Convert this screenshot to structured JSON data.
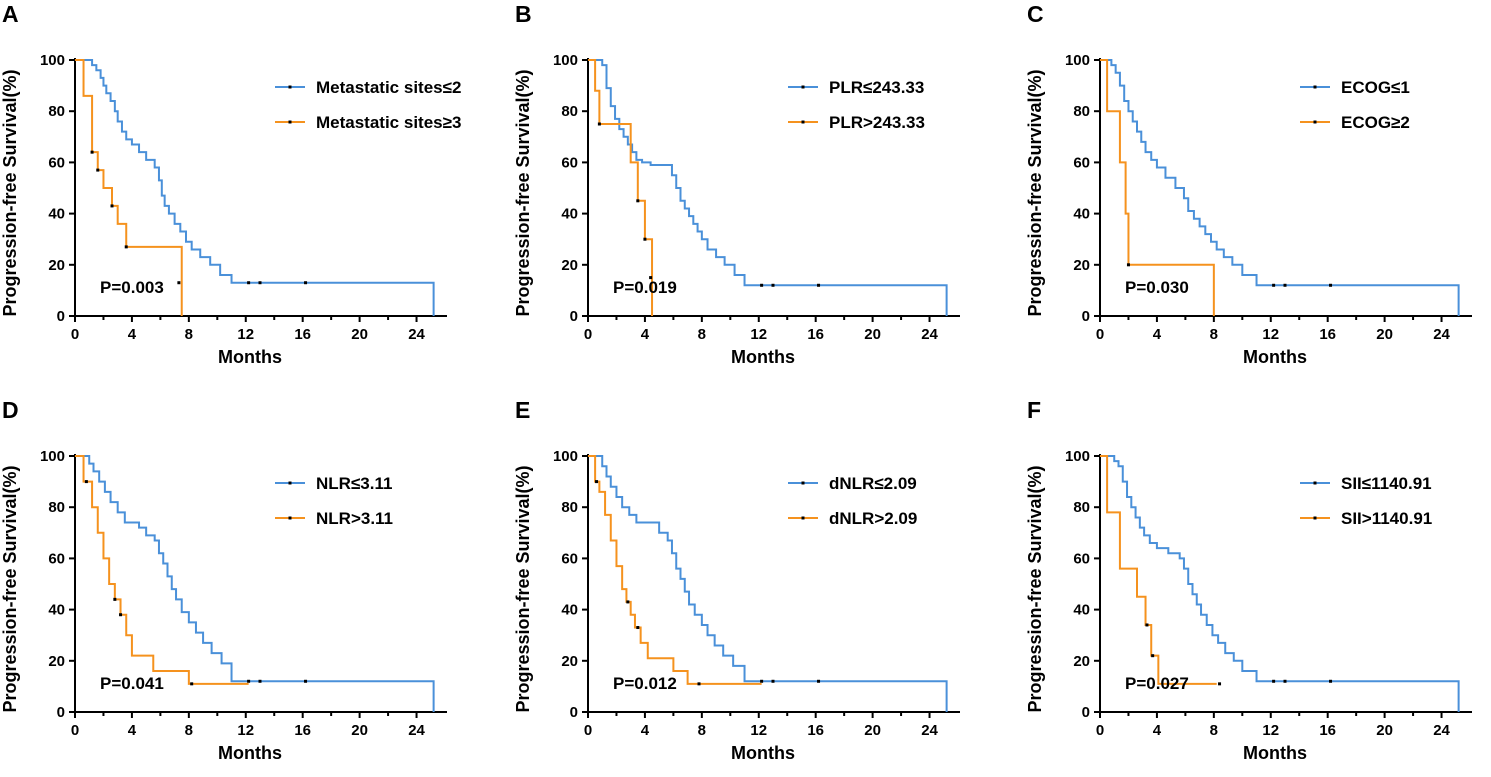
{
  "colors": {
    "blue": "#4a90d9",
    "orange": "#f5921e",
    "axis": "#000000"
  },
  "chart_data": [
    {
      "type": "line",
      "panel": "A",
      "xlabel": "Months",
      "ylabel": "Progression-free Survival(%)",
      "xlim": [
        0,
        26
      ],
      "ylim": [
        0,
        100
      ],
      "xticks": [
        "0",
        "4",
        "8",
        "12",
        "16",
        "20",
        "24"
      ],
      "yticks": [
        "0",
        "20",
        "40",
        "60",
        "80",
        "100"
      ],
      "p_value": "P=0.003",
      "series": [
        {
          "name": "Metastatic sites≤2",
          "color": "blue",
          "x": [
            0,
            1.2,
            1.5,
            1.8,
            2.0,
            2.2,
            2.5,
            2.8,
            3.0,
            3.3,
            3.6,
            4.0,
            4.5,
            5.0,
            5.6,
            5.9,
            6.1,
            6.3,
            6.6,
            7.0,
            7.4,
            7.8,
            8.2,
            8.8,
            9.5,
            10.2,
            11.0,
            25.2
          ],
          "y": [
            100,
            98,
            96,
            93,
            90,
            87,
            84,
            80,
            76,
            72,
            69,
            67,
            64,
            61,
            58,
            53,
            47,
            43,
            40,
            36,
            33,
            29,
            26,
            23,
            20,
            16,
            13,
            0
          ],
          "censor": [
            [
              12.2,
              13
            ],
            [
              13,
              13
            ],
            [
              16.2,
              13
            ]
          ]
        },
        {
          "name": "Metastatic sites≥3",
          "color": "orange",
          "x": [
            0,
            0.6,
            1.2,
            1.6,
            2.0,
            2.6,
            3.0,
            3.6,
            7.5
          ],
          "y": [
            100,
            86,
            64,
            57,
            50,
            43,
            36,
            27,
            0
          ],
          "censor": [
            [
              1.2,
              64
            ],
            [
              1.6,
              57
            ],
            [
              2.6,
              43
            ],
            [
              3.6,
              27
            ],
            [
              7.3,
              13
            ]
          ]
        }
      ]
    },
    {
      "type": "line",
      "panel": "B",
      "xlabel": "Months",
      "ylabel": "Progression-free Survival(%)",
      "xlim": [
        0,
        26
      ],
      "ylim": [
        0,
        100
      ],
      "xticks": [
        "0",
        "4",
        "8",
        "12",
        "16",
        "20",
        "24"
      ],
      "yticks": [
        "0",
        "20",
        "40",
        "60",
        "80",
        "100"
      ],
      "p_value": "P=0.019",
      "series": [
        {
          "name": "PLR≤243.33",
          "color": "blue",
          "x": [
            0,
            1.0,
            1.3,
            1.6,
            1.9,
            2.2,
            2.5,
            2.8,
            3.1,
            3.4,
            3.8,
            4.4,
            5.9,
            6.2,
            6.5,
            6.8,
            7.1,
            7.4,
            7.7,
            8.0,
            8.4,
            9.0,
            9.6,
            10.3,
            11.0,
            25.2
          ],
          "y": [
            100,
            98,
            89,
            82,
            77,
            73,
            70,
            67,
            64,
            61,
            60,
            59,
            55,
            50,
            45,
            42,
            39,
            36,
            33,
            30,
            26,
            23,
            20,
            16,
            12,
            0
          ],
          "censor": [
            [
              12.2,
              12
            ],
            [
              13,
              12
            ],
            [
              16.2,
              12
            ]
          ]
        },
        {
          "name": "PLR>243.33",
          "color": "orange",
          "x": [
            0,
            0.5,
            0.8,
            3.0,
            3.5,
            4.0,
            4.5
          ],
          "y": [
            100,
            88,
            75,
            60,
            45,
            30,
            0
          ],
          "censor": [
            [
              0.8,
              75
            ],
            [
              3.5,
              45
            ],
            [
              4.0,
              30
            ],
            [
              4.4,
              15
            ]
          ]
        }
      ]
    },
    {
      "type": "line",
      "panel": "C",
      "xlabel": "Months",
      "ylabel": "Progression-free Survival(%)",
      "xlim": [
        0,
        26
      ],
      "ylim": [
        0,
        100
      ],
      "xticks": [
        "0",
        "4",
        "8",
        "12",
        "16",
        "20",
        "24"
      ],
      "yticks": [
        "0",
        "20",
        "40",
        "60",
        "80",
        "100"
      ],
      "p_value": "P=0.030",
      "series": [
        {
          "name": "ECOG≤1",
          "color": "blue",
          "x": [
            0,
            0.8,
            1.1,
            1.4,
            1.7,
            2.0,
            2.3,
            2.6,
            2.9,
            3.2,
            3.6,
            4.0,
            4.6,
            5.3,
            5.9,
            6.2,
            6.6,
            7.0,
            7.4,
            7.8,
            8.2,
            8.7,
            9.3,
            10.0,
            11.0,
            25.2
          ],
          "y": [
            100,
            98,
            95,
            90,
            84,
            80,
            76,
            72,
            68,
            64,
            61,
            58,
            54,
            50,
            46,
            41,
            38,
            35,
            32,
            29,
            26,
            23,
            20,
            16,
            12,
            0
          ],
          "censor": [
            [
              12.2,
              12
            ],
            [
              13,
              12
            ],
            [
              16.2,
              12
            ]
          ]
        },
        {
          "name": "ECOG≥2",
          "color": "orange",
          "x": [
            0,
            0.5,
            1.4,
            1.8,
            2.0,
            8.0
          ],
          "y": [
            100,
            80,
            60,
            40,
            20,
            0
          ],
          "censor": [
            [
              2.0,
              20
            ]
          ]
        }
      ]
    },
    {
      "type": "line",
      "panel": "D",
      "xlabel": "Months",
      "ylabel": "Progression-free Survival(%)",
      "xlim": [
        0,
        26
      ],
      "ylim": [
        0,
        100
      ],
      "xticks": [
        "0",
        "4",
        "8",
        "12",
        "16",
        "20",
        "24"
      ],
      "yticks": [
        "0",
        "20",
        "40",
        "60",
        "80",
        "100"
      ],
      "p_value": "P=0.041",
      "series": [
        {
          "name": "NLR≤3.11",
          "color": "blue",
          "x": [
            0,
            1.0,
            1.3,
            1.7,
            2.1,
            2.5,
            3.0,
            3.5,
            4.5,
            5.0,
            5.6,
            5.9,
            6.2,
            6.5,
            6.8,
            7.1,
            7.5,
            8.0,
            8.5,
            9.0,
            9.6,
            10.3,
            11.0,
            25.2
          ],
          "y": [
            100,
            97,
            94,
            90,
            86,
            82,
            78,
            74,
            72,
            69,
            67,
            62,
            58,
            53,
            48,
            44,
            39,
            35,
            31,
            27,
            23,
            19,
            12,
            0
          ],
          "censor": [
            [
              12.2,
              12
            ],
            [
              13,
              12
            ],
            [
              16.2,
              12
            ]
          ]
        },
        {
          "name": "NLR>3.11",
          "color": "orange",
          "x": [
            0,
            0.6,
            1.2,
            1.6,
            2.0,
            2.4,
            2.8,
            3.2,
            3.6,
            4.0,
            5.5,
            8.0,
            12.2
          ],
          "y": [
            100,
            90,
            80,
            70,
            60,
            50,
            44,
            38,
            30,
            22,
            16,
            11,
            11
          ],
          "censor": [
            [
              0.8,
              90
            ],
            [
              2.8,
              44
            ],
            [
              3.2,
              38
            ],
            [
              8.2,
              11
            ]
          ]
        }
      ]
    },
    {
      "type": "line",
      "panel": "E",
      "xlabel": "Months",
      "ylabel": "Progression-free Survival(%)",
      "xlim": [
        0,
        26
      ],
      "ylim": [
        0,
        100
      ],
      "xticks": [
        "0",
        "4",
        "8",
        "12",
        "16",
        "20",
        "24"
      ],
      "yticks": [
        "0",
        "20",
        "40",
        "60",
        "80",
        "100"
      ],
      "p_value": "P=0.012",
      "series": [
        {
          "name": "dNLR≤2.09",
          "color": "blue",
          "x": [
            0,
            1.0,
            1.3,
            1.6,
            2.0,
            2.4,
            2.9,
            3.4,
            4.0,
            5.0,
            5.6,
            5.9,
            6.2,
            6.5,
            6.8,
            7.1,
            7.5,
            8.0,
            8.4,
            8.9,
            9.5,
            10.2,
            11.0,
            25.2
          ],
          "y": [
            100,
            96,
            92,
            88,
            84,
            80,
            77,
            74,
            74,
            70,
            67,
            62,
            56,
            52,
            47,
            42,
            38,
            34,
            30,
            26,
            22,
            18,
            12,
            0
          ],
          "censor": [
            [
              12.2,
              12
            ],
            [
              13,
              12
            ],
            [
              16.2,
              12
            ]
          ]
        },
        {
          "name": "dNLR>2.09",
          "color": "orange",
          "x": [
            0,
            0.5,
            0.8,
            1.2,
            1.6,
            2.0,
            2.4,
            2.7,
            3.0,
            3.3,
            3.7,
            4.2,
            6.0,
            7.0,
            12.2
          ],
          "y": [
            100,
            90,
            86,
            77,
            67,
            57,
            48,
            43,
            38,
            33,
            27,
            21,
            16,
            11,
            11
          ],
          "censor": [
            [
              0.6,
              90
            ],
            [
              2.8,
              43
            ],
            [
              3.5,
              33
            ],
            [
              7.8,
              11
            ]
          ]
        }
      ]
    },
    {
      "type": "line",
      "panel": "F",
      "xlabel": "Months",
      "ylabel": "Progression-free Survival(%)",
      "xlim": [
        0,
        26
      ],
      "ylim": [
        0,
        100
      ],
      "xticks": [
        "0",
        "4",
        "8",
        "12",
        "16",
        "20",
        "24"
      ],
      "yticks": [
        "0",
        "20",
        "40",
        "60",
        "80",
        "100"
      ],
      "p_value": "P=0.027",
      "series": [
        {
          "name": "SII≤1140.91",
          "color": "blue",
          "x": [
            0,
            1.0,
            1.3,
            1.6,
            1.9,
            2.2,
            2.5,
            2.8,
            3.1,
            3.5,
            4.0,
            4.8,
            5.6,
            5.9,
            6.2,
            6.5,
            6.8,
            7.1,
            7.5,
            7.9,
            8.3,
            8.8,
            9.4,
            10.0,
            11.0,
            25.2
          ],
          "y": [
            100,
            98,
            96,
            90,
            84,
            80,
            76,
            72,
            69,
            66,
            64,
            62,
            60,
            56,
            50,
            46,
            42,
            38,
            34,
            30,
            27,
            23,
            20,
            16,
            12,
            0
          ],
          "censor": [
            [
              12.2,
              12
            ],
            [
              13,
              12
            ],
            [
              16.2,
              12
            ]
          ]
        },
        {
          "name": "SII>1140.91",
          "color": "orange",
          "x": [
            0,
            0.5,
            1.4,
            2.6,
            3.2,
            3.6,
            4.1,
            8.2
          ],
          "y": [
            100,
            78,
            56,
            45,
            34,
            22,
            11,
            11
          ],
          "censor": [
            [
              3.3,
              34
            ],
            [
              3.7,
              22
            ],
            [
              8.4,
              11
            ]
          ]
        }
      ]
    }
  ]
}
